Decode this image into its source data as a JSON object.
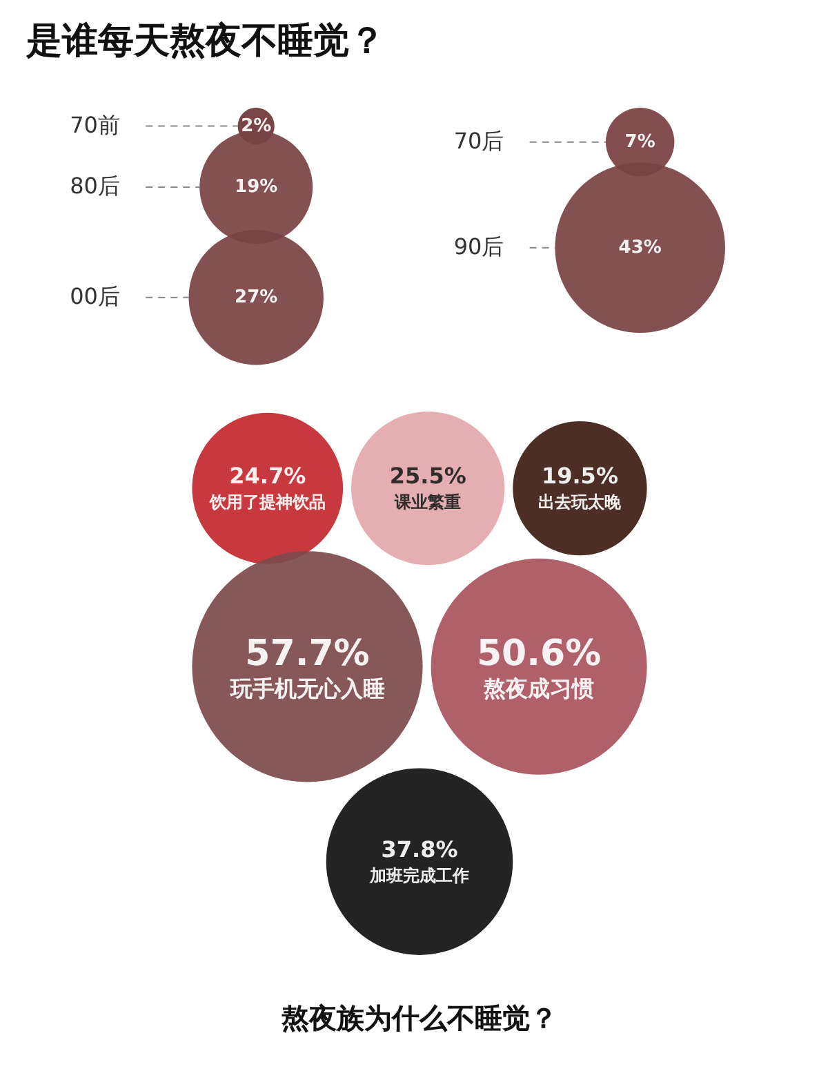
{
  "chart_data": [
    {
      "type": "other",
      "title": "是谁每天熬夜不睡觉？",
      "categories": [
        "70前",
        "70后",
        "80后",
        "90后",
        "00后"
      ],
      "values": [
        2,
        7,
        19,
        43,
        27
      ],
      "value_labels": [
        "2%",
        "7%",
        "19%",
        "43%",
        "27%"
      ],
      "colors": [
        "#6e3538",
        "#7a3f42",
        "#7a4244",
        "#7a4244",
        "#7a4244"
      ]
    },
    {
      "type": "other",
      "title": "熬夜族为什么不睡觉？",
      "categories": [
        "饮用了提神饮品",
        "课业繁重",
        "出去玩太晚",
        "玩手机无心入睡",
        "熬夜成习惯",
        "加班完成工作"
      ],
      "values": [
        24.7,
        25.5,
        19.5,
        57.7,
        50.6,
        37.8
      ],
      "value_labels": [
        "24.7%",
        "25.5%",
        "19.5%",
        "57.7%",
        "50.6%",
        "37.8%"
      ],
      "colors": [
        "#c3282f",
        "#e2a7ab",
        "#3d1c12",
        "#7d4a4b",
        "#a8535b",
        "#111111"
      ]
    }
  ]
}
